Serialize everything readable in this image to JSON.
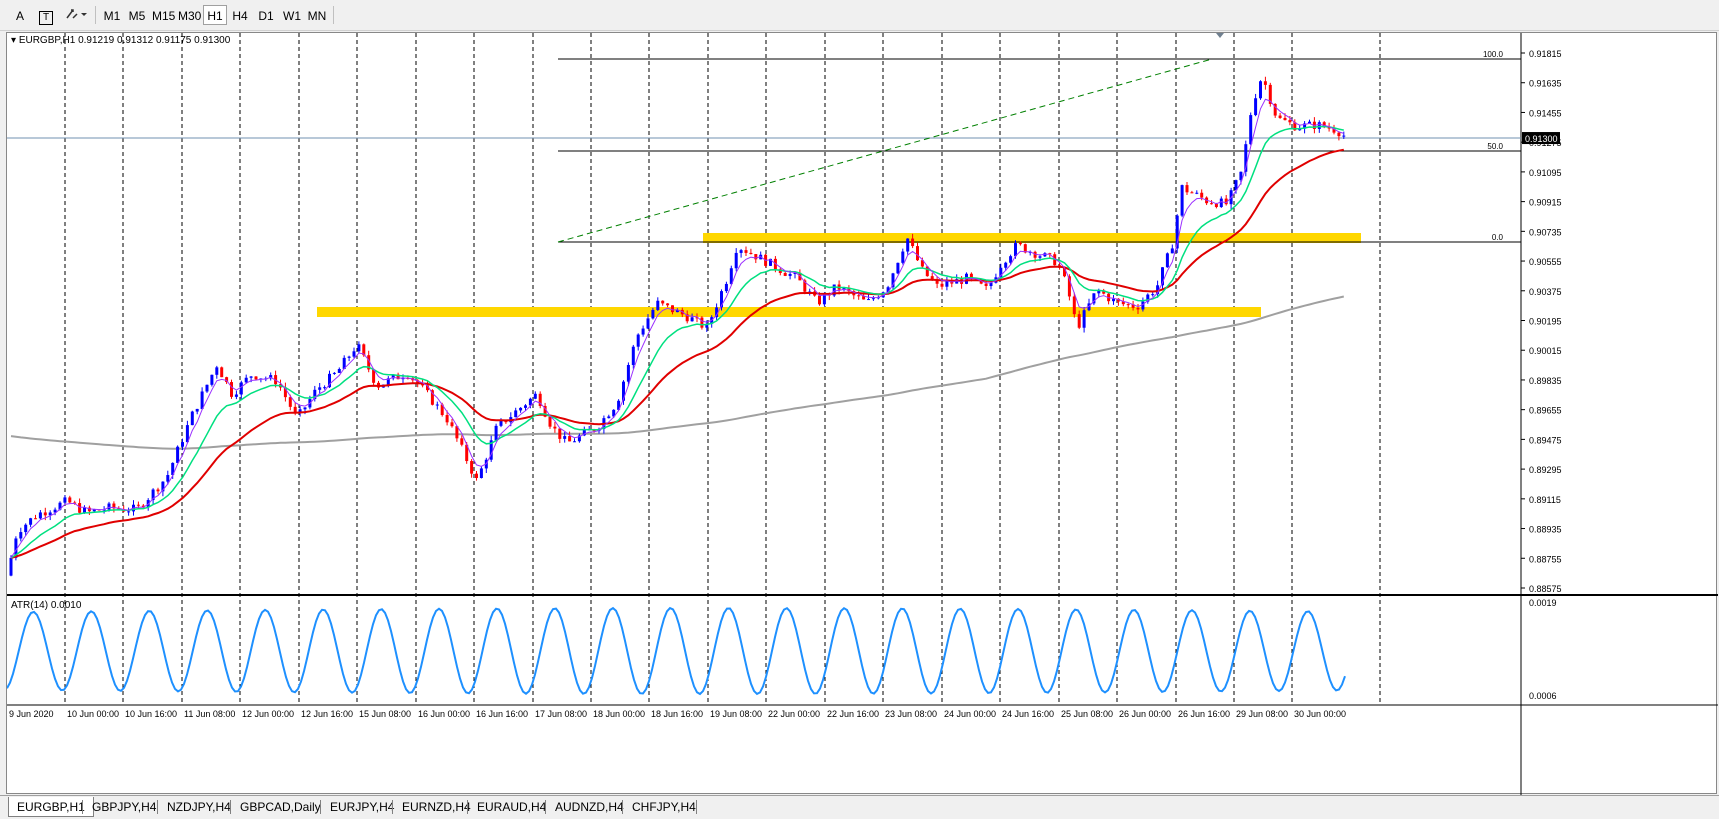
{
  "toolbar": {
    "draw_text": "A",
    "draw_label": "T",
    "timeframes": [
      "M1",
      "M5",
      "M15",
      "M30",
      "H1",
      "H4",
      "D1",
      "W1",
      "MN"
    ],
    "active_timeframe": "H1"
  },
  "chart": {
    "header": "EURGBP,H1  0.91219 0.91312 0.91175 0.91300",
    "current_price": "0.91300",
    "price_axis": [
      "0.91815",
      "0.91635",
      "0.91455",
      "0.91275",
      "0.91095",
      "0.90915",
      "0.90735",
      "0.90555",
      "0.90375",
      "0.90195",
      "0.90015",
      "0.89835",
      "0.89655",
      "0.89475",
      "0.89295",
      "0.89115",
      "0.88935",
      "0.88755",
      "0.88575"
    ],
    "time_axis": [
      "9 Jun 2020",
      "10 Jun 00:00",
      "10 Jun 16:00",
      "11 Jun 08:00",
      "12 Jun 00:00",
      "12 Jun 16:00",
      "15 Jun 08:00",
      "16 Jun 00:00",
      "16 Jun 16:00",
      "17 Jun 08:00",
      "18 Jun 00:00",
      "18 Jun 16:00",
      "19 Jun 08:00",
      "22 Jun 00:00",
      "22 Jun 16:00",
      "23 Jun 08:00",
      "24 Jun 00:00",
      "24 Jun 16:00",
      "25 Jun 08:00",
      "26 Jun 00:00",
      "26 Jun 16:00",
      "29 Jun 08:00",
      "30 Jun 00:00"
    ],
    "fib_levels": [
      "100.0",
      "50.0",
      "0.0"
    ],
    "indicator_label": "ATR(14) 0.0010",
    "indicator_axis": [
      "0.0019",
      "0.0006"
    ],
    "colors": {
      "bull_candle": "#0000ff",
      "bear_candle": "#ff0000",
      "ma_fast": "#9b30ff",
      "ma_mid": "#00e080",
      "ma_slow": "#e00000",
      "ma_long": "#a0a0a0",
      "zone": "#ffd700",
      "atr": "#1e90ff"
    }
  },
  "tabs": [
    "EURGBP,H1",
    "GBPJPY,H4",
    "NZDJPY,H4",
    "GBPCAD,Daily",
    "EURJPY,H4",
    "EURNZD,H4",
    "EURAUD,H4",
    "AUDNZD,H4",
    "CHFJPY,H4"
  ],
  "active_tab": "EURGBP,H1"
}
